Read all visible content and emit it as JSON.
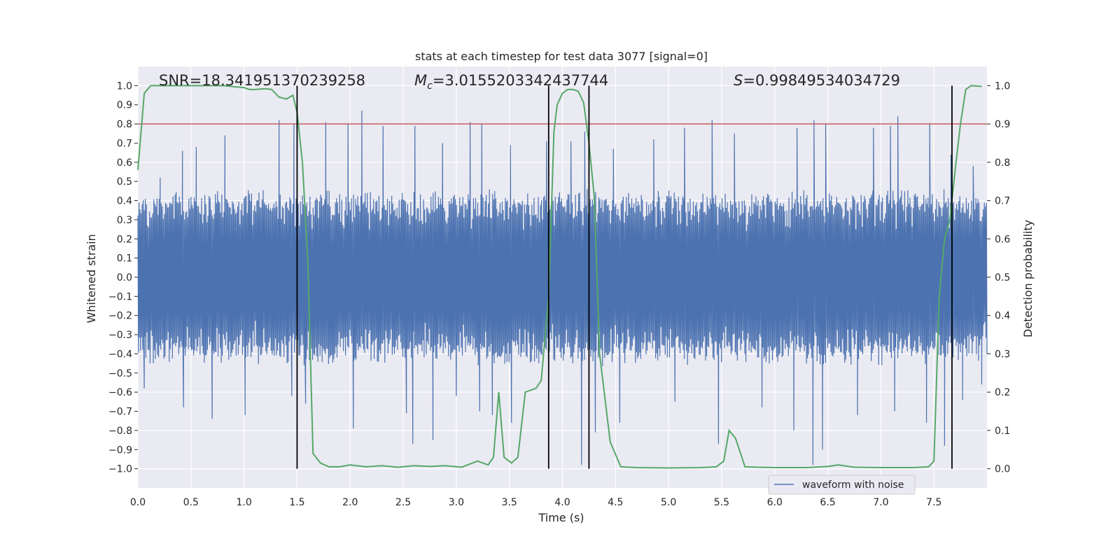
{
  "chart_data": {
    "type": "line",
    "title": "stats at each timestep for test data 3077 [signal=0]",
    "xlabel": "Time (s)",
    "ylabel": "Whitened strain",
    "y2label": "Detection probability",
    "xlim": [
      0.0,
      8.0
    ],
    "ylim": [
      -1.1,
      1.1
    ],
    "y2lim": [
      -0.05,
      1.05
    ],
    "xticks": [
      0.0,
      0.5,
      1.0,
      1.5,
      2.0,
      2.5,
      3.0,
      3.5,
      4.0,
      4.5,
      5.0,
      5.5,
      6.0,
      6.5,
      7.0,
      7.5
    ],
    "xtick_labels": [
      "0.0",
      "0.5",
      "1.0",
      "1.5",
      "2.0",
      "2.5",
      "3.0",
      "3.5",
      "4.0",
      "4.5",
      "5.0",
      "5.5",
      "6.0",
      "6.5",
      "7.0",
      "7.5"
    ],
    "yticks": [
      -1.0,
      -0.9,
      -0.8,
      -0.7,
      -0.6,
      -0.5,
      -0.4,
      -0.3,
      -0.2,
      -0.1,
      0.0,
      0.1,
      0.2,
      0.3,
      0.4,
      0.5,
      0.6,
      0.7,
      0.8,
      0.9,
      1.0
    ],
    "ytick_labels": [
      "−1.0",
      "−0.9",
      "−0.8",
      "−0.7",
      "−0.6",
      "−0.5",
      "−0.4",
      "−0.3",
      "−0.2",
      "−0.1",
      "0.0",
      "0.1",
      "0.2",
      "0.3",
      "0.4",
      "0.5",
      "0.6",
      "0.7",
      "0.8",
      "0.9",
      "1.0"
    ],
    "y2ticks": [
      0.0,
      0.1,
      0.2,
      0.3,
      0.4,
      0.5,
      0.6,
      0.7,
      0.8,
      0.9,
      1.0
    ],
    "y2tick_labels": [
      "0.0",
      "0.1",
      "0.2",
      "0.3",
      "0.4",
      "0.5",
      "0.6",
      "0.7",
      "0.8",
      "0.9",
      "1.0"
    ],
    "grid": true,
    "legend": {
      "placement": "lower-right",
      "entries": [
        {
          "label": "waveform with noise",
          "color": "#4c72b0"
        }
      ]
    },
    "annotations": {
      "snr": "SNR=18.341951370239258",
      "mc_symbol": "M",
      "mc_sub": "c",
      "mc_value": "=3.0155203342437744",
      "s_symbol": "S",
      "s_value": "=0.99849534034729"
    },
    "threshold": {
      "value": 0.9,
      "axis": "y2",
      "color": "#c44e52"
    },
    "vertical_lines": [
      1.5,
      3.87,
      4.25,
      7.67
    ],
    "waveform": {
      "name": "waveform with noise",
      "color": "#4c72b0",
      "duration": 8.0,
      "sample_count": 1600,
      "band_amplitude": 0.38,
      "peaks": [
        [
          0.21,
          0.52
        ],
        [
          0.42,
          0.66
        ],
        [
          0.55,
          0.68
        ],
        [
          0.82,
          0.74
        ],
        [
          1.33,
          0.82
        ],
        [
          1.47,
          0.8
        ],
        [
          1.77,
          0.81
        ],
        [
          1.98,
          0.8
        ],
        [
          2.11,
          0.87
        ],
        [
          2.31,
          0.79
        ],
        [
          2.61,
          0.79
        ],
        [
          2.87,
          0.7
        ],
        [
          3.13,
          0.81
        ],
        [
          3.24,
          0.8
        ],
        [
          3.51,
          0.69
        ],
        [
          3.85,
          0.71
        ],
        [
          4.08,
          0.71
        ],
        [
          4.21,
          0.76
        ],
        [
          4.48,
          0.67
        ],
        [
          4.86,
          0.72
        ],
        [
          5.15,
          0.78
        ],
        [
          5.41,
          0.82
        ],
        [
          5.62,
          0.75
        ],
        [
          6.21,
          0.78
        ],
        [
          6.37,
          0.82
        ],
        [
          6.48,
          0.8
        ],
        [
          6.93,
          0.78
        ],
        [
          7.09,
          0.79
        ],
        [
          7.16,
          0.84
        ],
        [
          7.46,
          0.8
        ],
        [
          7.66,
          0.64
        ],
        [
          7.87,
          0.58
        ]
      ],
      "troughs": [
        [
          0.06,
          -0.58
        ],
        [
          0.43,
          -0.68
        ],
        [
          0.7,
          -0.74
        ],
        [
          1.01,
          -0.72
        ],
        [
          1.45,
          -0.62
        ],
        [
          1.58,
          -0.66
        ],
        [
          2.03,
          -0.79
        ],
        [
          2.53,
          -0.71
        ],
        [
          2.59,
          -0.87
        ],
        [
          2.78,
          -0.85
        ],
        [
          3.0,
          -0.62
        ],
        [
          3.22,
          -0.7
        ],
        [
          3.34,
          -0.72
        ],
        [
          3.52,
          -0.76
        ],
        [
          4.18,
          -0.98
        ],
        [
          4.31,
          -0.81
        ],
        [
          4.54,
          -0.76
        ],
        [
          5.06,
          -0.65
        ],
        [
          5.47,
          -0.87
        ],
        [
          5.88,
          -0.68
        ],
        [
          6.18,
          -0.8
        ],
        [
          6.36,
          -0.98
        ],
        [
          6.45,
          -0.9
        ],
        [
          6.78,
          -0.72
        ],
        [
          7.13,
          -0.7
        ],
        [
          7.43,
          -0.76
        ],
        [
          7.6,
          -0.88
        ],
        [
          7.77,
          -0.64
        ],
        [
          7.95,
          -0.56
        ]
      ]
    },
    "series": [
      {
        "name": "detection probability",
        "axis": "y2",
        "color": "#55a868",
        "x": [
          0.0,
          0.06,
          0.12,
          0.25,
          0.5,
          0.8,
          1.0,
          1.05,
          1.1,
          1.2,
          1.26,
          1.33,
          1.4,
          1.46,
          1.5,
          1.55,
          1.6,
          1.65,
          1.72,
          1.8,
          1.9,
          2.0,
          2.15,
          2.3,
          2.45,
          2.6,
          2.75,
          2.9,
          3.05,
          3.2,
          3.3,
          3.35,
          3.4,
          3.45,
          3.52,
          3.58,
          3.65,
          3.75,
          3.8,
          3.87,
          3.92,
          3.95,
          4.0,
          4.05,
          4.1,
          4.15,
          4.2,
          4.25,
          4.3,
          4.35,
          4.45,
          4.55,
          4.7,
          5.0,
          5.3,
          5.45,
          5.52,
          5.57,
          5.63,
          5.72,
          5.85,
          6.0,
          6.3,
          6.5,
          6.6,
          6.75,
          7.0,
          7.3,
          7.45,
          7.5,
          7.55,
          7.6,
          7.65,
          7.7,
          7.75,
          7.8,
          7.85,
          7.95
        ],
        "y": [
          0.78,
          0.98,
          1.0,
          1.0,
          1.0,
          1.0,
          0.995,
          0.99,
          0.99,
          0.992,
          0.99,
          0.97,
          0.965,
          0.975,
          0.93,
          0.8,
          0.55,
          0.04,
          0.015,
          0.005,
          0.005,
          0.01,
          0.005,
          0.008,
          0.004,
          0.008,
          0.006,
          0.008,
          0.004,
          0.02,
          0.01,
          0.03,
          0.2,
          0.03,
          0.015,
          0.03,
          0.2,
          0.21,
          0.23,
          0.45,
          0.88,
          0.95,
          0.98,
          0.99,
          0.99,
          0.985,
          0.955,
          0.85,
          0.71,
          0.3,
          0.07,
          0.005,
          0.003,
          0.002,
          0.003,
          0.005,
          0.02,
          0.1,
          0.08,
          0.005,
          0.004,
          0.003,
          0.003,
          0.006,
          0.01,
          0.004,
          0.003,
          0.003,
          0.005,
          0.02,
          0.45,
          0.6,
          0.65,
          0.78,
          0.9,
          0.99,
          1.0,
          0.998
        ]
      }
    ]
  }
}
